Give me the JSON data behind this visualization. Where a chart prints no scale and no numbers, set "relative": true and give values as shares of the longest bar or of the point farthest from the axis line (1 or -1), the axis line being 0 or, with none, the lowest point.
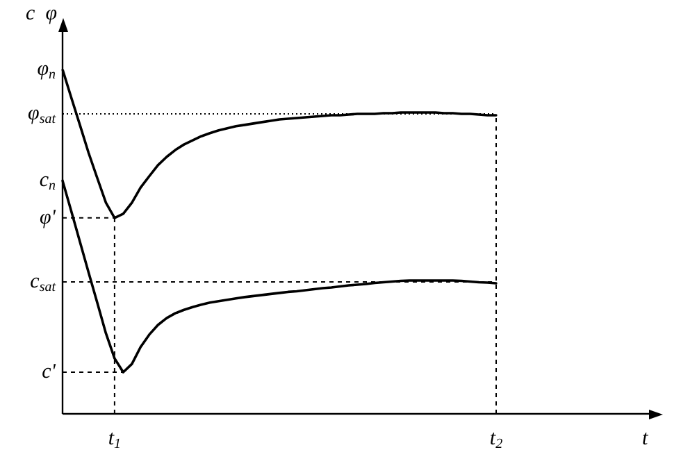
{
  "chart_data": {
    "type": "line",
    "relative": true,
    "ylabel": "c  φ",
    "legend": false,
    "grid": false,
    "marker": "none",
    "line_style": "solid",
    "categories": [
      null,
      null,
      null,
      null,
      null,
      null,
      "t$_{1}$",
      null,
      null,
      null,
      null,
      null,
      null,
      null,
      null,
      null,
      null,
      null,
      null,
      null,
      null,
      null,
      null,
      null,
      null,
      null,
      null,
      null,
      null,
      null,
      null,
      null,
      null,
      null,
      null,
      null,
      null,
      null,
      null,
      null,
      null,
      null,
      null,
      null,
      null,
      null,
      null,
      null,
      null,
      null,
      "t$_{2}$"
    ],
    "series": [
      {
        "color": "#000000",
        "values": [
          1.0,
          0.919,
          0.839,
          0.758,
          0.685,
          0.613,
          0.569,
          0.581,
          0.613,
          0.657,
          0.69,
          0.722,
          0.746,
          0.766,
          0.782,
          0.794,
          0.806,
          0.815,
          0.823,
          0.829,
          0.835,
          0.839,
          0.843,
          0.847,
          0.851,
          0.855,
          0.857,
          0.859,
          0.861,
          0.863,
          0.865,
          0.867,
          0.867,
          0.869,
          0.871,
          0.871,
          0.871,
          0.873,
          0.873,
          0.875,
          0.875,
          0.875,
          0.875,
          0.875,
          0.873,
          0.873,
          0.871,
          0.871,
          0.869,
          0.867,
          0.867
        ]
      },
      {
        "color": "#000000",
        "values": [
          0.677,
          0.589,
          0.5,
          0.411,
          0.323,
          0.234,
          0.161,
          0.121,
          0.145,
          0.194,
          0.23,
          0.258,
          0.278,
          0.292,
          0.302,
          0.31,
          0.317,
          0.323,
          0.327,
          0.331,
          0.335,
          0.339,
          0.342,
          0.345,
          0.348,
          0.351,
          0.354,
          0.356,
          0.359,
          0.362,
          0.365,
          0.367,
          0.37,
          0.373,
          0.375,
          0.377,
          0.38,
          0.382,
          0.384,
          0.386,
          0.387,
          0.387,
          0.387,
          0.387,
          0.387,
          0.387,
          0.386,
          0.384,
          0.382,
          0.381,
          0.379
        ]
      }
    ],
    "ref_lines": [
      {
        "axis": "y",
        "value": 0.871,
        "label": "φ$_{sat}$",
        "line_style": "dotted"
      },
      {
        "axis": "y",
        "value": 0.569,
        "label": "φ'",
        "line_style": "dashed"
      },
      {
        "axis": "y",
        "value": 0.383,
        "label": "c$_{sat}$",
        "line_style": "dashed"
      },
      {
        "axis": "y",
        "value": 0.121,
        "label": "c'",
        "line_style": "dashed"
      },
      {
        "axis": "x",
        "value": "t$_{1}$",
        "line_style": "dashed"
      },
      {
        "axis": "x",
        "value": "t$_{2}$",
        "line_style": "dashed"
      }
    ],
    "annotations": [
      "φ$_{n}$",
      "c$_{n}$",
      "t"
    ]
  }
}
